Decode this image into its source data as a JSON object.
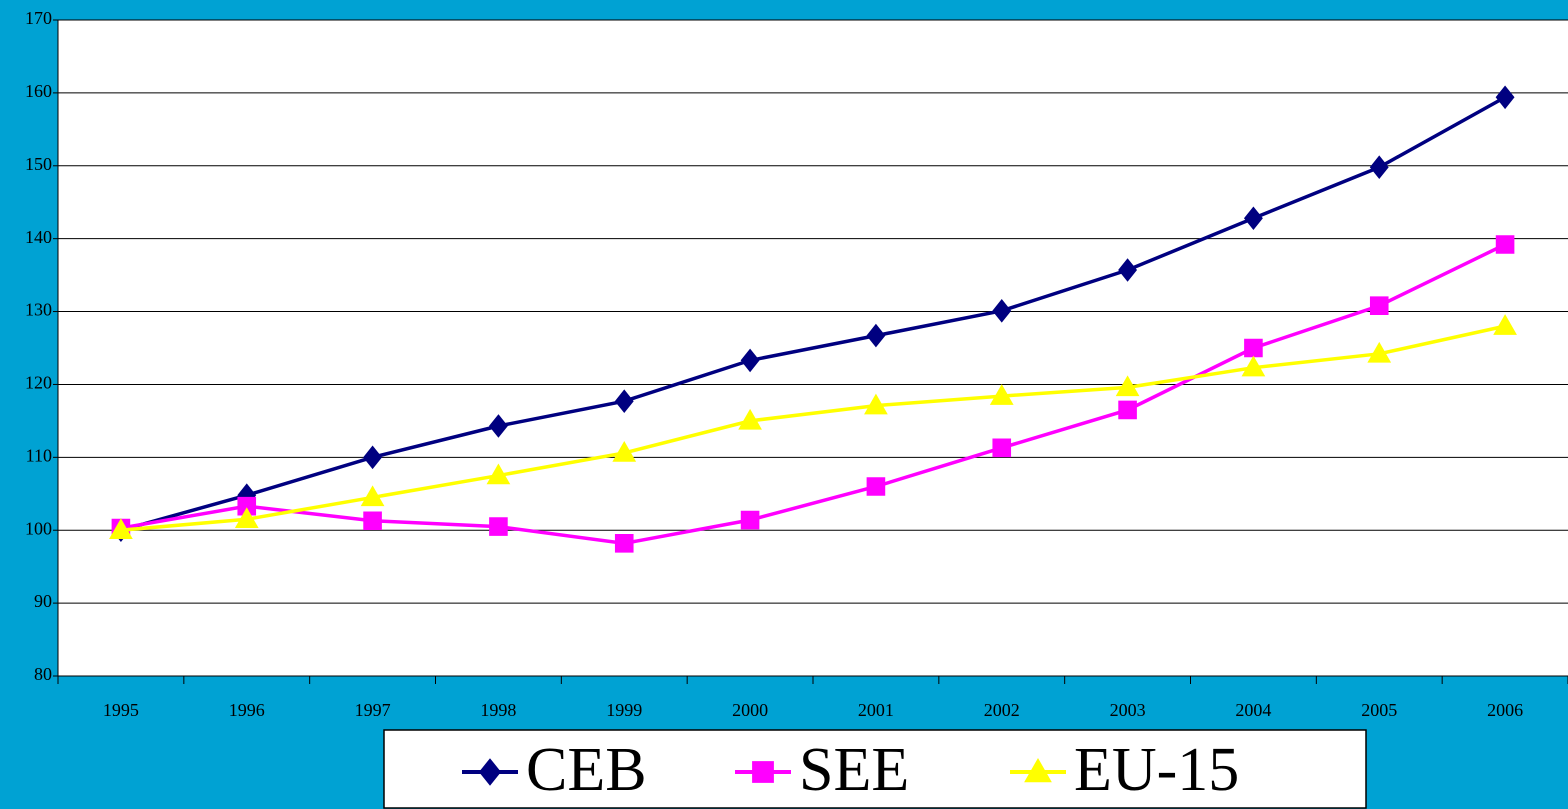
{
  "chart_data": {
    "type": "line",
    "categories": [
      "1995",
      "1996",
      "1997",
      "1998",
      "1999",
      "2000",
      "2001",
      "2002",
      "2003",
      "2004",
      "2005",
      "2006"
    ],
    "series": [
      {
        "name": "CEB",
        "color": "#000080",
        "marker": "diamond",
        "values": [
          100,
          104.8,
          110,
          114.3,
          117.7,
          123.3,
          126.7,
          130.1,
          135.7,
          142.8,
          149.8,
          159.4
        ]
      },
      {
        "name": "SEE",
        "color": "#ff00ff",
        "marker": "square",
        "values": [
          100.3,
          103.3,
          101.3,
          100.5,
          98.2,
          101.4,
          106,
          111.3,
          116.5,
          125,
          130.8,
          139.2
        ]
      },
      {
        "name": "EU-15",
        "color": "#ffff00",
        "marker": "triangle",
        "values": [
          100,
          101.5,
          104.5,
          107.5,
          110.6,
          115,
          117.1,
          118.4,
          119.6,
          122.3,
          124.2,
          128
        ]
      }
    ],
    "ylim": [
      80,
      170
    ],
    "yticks": [
      80,
      90,
      100,
      110,
      120,
      130,
      140,
      150,
      160,
      170
    ],
    "grid": true,
    "legend": "bottom"
  }
}
